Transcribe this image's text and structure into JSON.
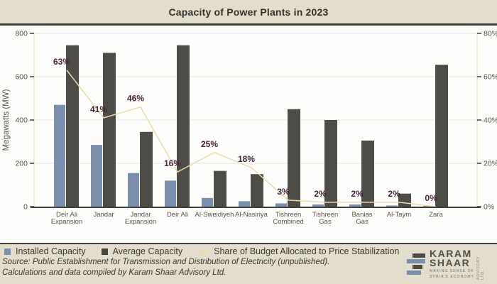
{
  "title": "Capacity of Power Plants in 2023",
  "colors": {
    "background": "#e2ddcc",
    "plot_background": "#fdfdfb",
    "installed_bar": "#7b8fae",
    "average_bar": "#4e4c46",
    "budget_line": "#ecdcab",
    "pct_label": "#482339",
    "axis_text": "#55544b",
    "divider": "#403f38"
  },
  "chart_data": {
    "type": "bar",
    "title": "Capacity of Power Plants in 2023",
    "categories": [
      "Deir Ali Expansion",
      "Jandar",
      "Jandar Expansion",
      "Deir Ali",
      "Al-Sweidiyeh",
      "Al-Nasiriya",
      "Tishreen Combined",
      "Tishreen Gas",
      "Banias Gas",
      "Al-Taym",
      "Zara"
    ],
    "category_lines": [
      [
        "Deir Ali",
        "Expansion"
      ],
      [
        "Jandar"
      ],
      [
        "Jandar",
        "Expansion"
      ],
      [
        "Deir Ali"
      ],
      [
        "Al-Sweidiyeh"
      ],
      [
        "Al-Nasiriya"
      ],
      [
        "Tishreen",
        "Combined"
      ],
      [
        "Tishreen",
        "Gas"
      ],
      [
        "Banias",
        "Gas"
      ],
      [
        "Al-Taym"
      ],
      [
        "Zara"
      ]
    ],
    "series": [
      {
        "name": "Installed Capacity",
        "type": "bar",
        "yaxis": "left",
        "values": [
          470,
          285,
          155,
          120,
          40,
          25,
          15,
          10,
          10,
          5,
          3
        ]
      },
      {
        "name": "Average Capacity",
        "type": "bar",
        "yaxis": "left",
        "values": [
          745,
          710,
          345,
          745,
          165,
          150,
          450,
          400,
          305,
          60,
          655
        ]
      },
      {
        "name": "Share of Budget Allocated to Price Stabilization",
        "type": "line",
        "yaxis": "right",
        "values": [
          63,
          41,
          46,
          16,
          25,
          18,
          3,
          2,
          2,
          2,
          0
        ],
        "point_labels": [
          "63%",
          "41%",
          "46%",
          "16%",
          "25%",
          "18%",
          "3%",
          "2%",
          "2%",
          "2%",
          "0%"
        ]
      }
    ],
    "left_axis": {
      "label": "Megawatts (MW)",
      "ticks": [
        0,
        200,
        400,
        600,
        800
      ],
      "range": [
        0,
        800
      ]
    },
    "right_axis": {
      "tick_labels": [
        "0%",
        "20%",
        "40%",
        "60%",
        "80%"
      ],
      "tick_values": [
        0,
        20,
        40,
        60,
        80
      ],
      "range": [
        0,
        80
      ]
    },
    "grid": "horizontal",
    "legend_position": "bottom"
  },
  "legend": {
    "items": [
      {
        "label": "Installed Capacity"
      },
      {
        "label": "Average Capacity"
      },
      {
        "label": "Share of Budget Allocated to Price Stabilization"
      }
    ]
  },
  "source": {
    "line1": "Source: Public Establishment for Transmission and Distribution of Electricity (unpublished).",
    "line2": "Calculations and data compiled by Karam Shaar Advisory Ltd."
  },
  "logo": {
    "name_line1": "KARAM",
    "name_line2": "SHAAR",
    "tagline_line1": "MAKING SENSE OF",
    "tagline_line2": "SYRIA'S ECONOMY",
    "side_text": "ADVISORY LTD."
  }
}
